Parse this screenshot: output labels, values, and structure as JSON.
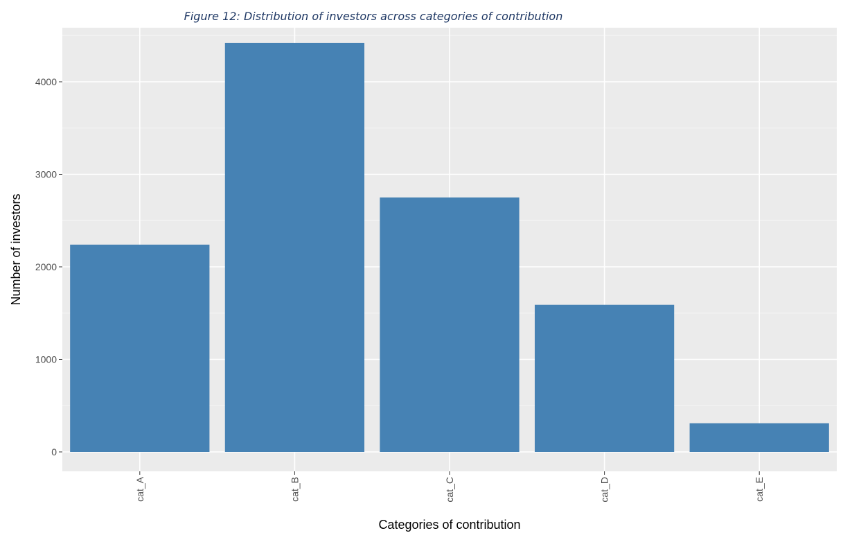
{
  "figure": {
    "caption": "Figure 12: Distribution of investors across categories of contribution"
  },
  "colors": {
    "bar": "#4682b4",
    "panel": "#ebebeb",
    "grid_major": "#ffffff",
    "grid_minor": "#f5f5f5",
    "axis_text": "#4d4d4d"
  },
  "chart_data": {
    "type": "bar",
    "title": "",
    "categories": [
      "cat_A",
      "cat_B",
      "cat_C",
      "cat_D",
      "cat_E"
    ],
    "values": [
      2240,
      4420,
      2750,
      1590,
      310
    ],
    "xlabel": "Categories of contribution",
    "ylabel": "Number of investors",
    "ylim": [
      0,
      4600
    ],
    "yticks": [
      0,
      1000,
      2000,
      3000,
      4000
    ],
    "grid": true,
    "x_tick_rotation": "vertical"
  }
}
